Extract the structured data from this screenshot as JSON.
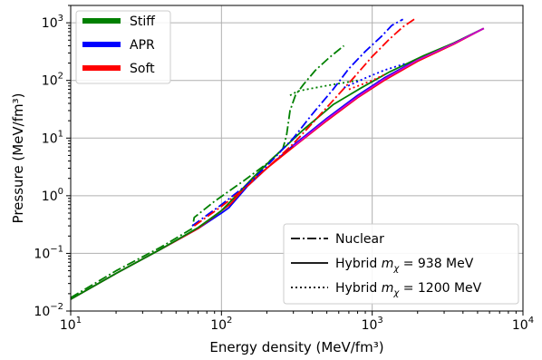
{
  "chart_data": {
    "type": "line",
    "xscale": "log",
    "yscale": "log",
    "xlim": [
      10,
      10000
    ],
    "ylim": [
      0.01,
      2000
    ],
    "grid": true,
    "xlabel": "Energy density (MeV/fm³)",
    "ylabel": "Pressure (MeV/fm³)",
    "x_ticks": [
      {
        "value": 10,
        "base": "10",
        "exp": "1"
      },
      {
        "value": 100,
        "base": "10",
        "exp": "2"
      },
      {
        "value": 1000,
        "base": "10",
        "exp": "3"
      },
      {
        "value": 10000,
        "base": "10",
        "exp": "4"
      }
    ],
    "y_ticks": [
      {
        "value": 0.01,
        "base": "10",
        "exp": "−2"
      },
      {
        "value": 0.1,
        "base": "10",
        "exp": "−1"
      },
      {
        "value": 1,
        "base": "10",
        "exp": "0"
      },
      {
        "value": 10,
        "base": "10",
        "exp": "1"
      },
      {
        "value": 100,
        "base": "10",
        "exp": "2"
      },
      {
        "value": 1000,
        "base": "10",
        "exp": "3"
      }
    ],
    "legend_eos": {
      "placement": "top-left",
      "entries": [
        {
          "name": "Stiff",
          "color": "#008000"
        },
        {
          "name": "APR",
          "color": "#0000ff"
        },
        {
          "name": "Soft",
          "color": "#ff0000"
        }
      ]
    },
    "legend_style": {
      "placement": "bottom-right",
      "entries": [
        {
          "style": "dashdot",
          "prefix": "Nuclear",
          "var": "",
          "sub": "",
          "suffix": ""
        },
        {
          "style": "solid",
          "prefix": "Hybrid ",
          "var": "m",
          "sub": "χ",
          "suffix": " = 938 MeV"
        },
        {
          "style": "dotted",
          "prefix": "Hybrid ",
          "var": "m",
          "sub": "χ",
          "suffix": " = 1200 MeV"
        }
      ]
    },
    "series": [
      {
        "eos": "APR",
        "style": "solid",
        "color": "#0000ff",
        "points": [
          [
            10,
            0.016
          ],
          [
            20,
            0.045
          ],
          [
            40,
            0.12
          ],
          [
            70,
            0.27
          ],
          [
            100,
            0.5
          ],
          [
            112,
            0.62
          ],
          [
            150,
            1.5
          ],
          [
            200,
            3.0
          ],
          [
            300,
            7.5
          ],
          [
            500,
            22
          ],
          [
            800,
            55
          ],
          [
            1200,
            110
          ],
          [
            2000,
            230
          ],
          [
            3500,
            450
          ],
          [
            5500,
            800
          ]
        ]
      },
      {
        "eos": "Soft",
        "style": "solid",
        "color": "#ff0000",
        "points": [
          [
            10,
            0.016
          ],
          [
            20,
            0.045
          ],
          [
            40,
            0.12
          ],
          [
            70,
            0.27
          ],
          [
            100,
            0.55
          ],
          [
            115,
            0.72
          ],
          [
            150,
            1.6
          ],
          [
            200,
            3.0
          ],
          [
            300,
            7.0
          ],
          [
            500,
            20
          ],
          [
            800,
            50
          ],
          [
            1200,
            100
          ],
          [
            2000,
            215
          ],
          [
            3500,
            430
          ],
          [
            5500,
            800
          ]
        ]
      },
      {
        "eos": "Stiff",
        "style": "solid",
        "color": "#008000",
        "points": [
          [
            10,
            0.016
          ],
          [
            20,
            0.045
          ],
          [
            40,
            0.12
          ],
          [
            70,
            0.28
          ],
          [
            100,
            0.55
          ],
          [
            120,
            0.9
          ],
          [
            160,
            2.0
          ],
          [
            220,
            4.5
          ],
          [
            350,
            14
          ],
          [
            550,
            38
          ],
          [
            850,
            75
          ],
          [
            1300,
            140
          ],
          [
            2200,
            270
          ],
          [
            3500,
            450
          ],
          [
            5500,
            800
          ]
        ]
      },
      {
        "eos": "Stiff",
        "style": "solid",
        "color": "#cc00cc",
        "points": [
          [
            300,
            7.2
          ],
          [
            500,
            21
          ],
          [
            800,
            52
          ],
          [
            1200,
            105
          ],
          [
            2000,
            225
          ],
          [
            3500,
            440
          ],
          [
            5500,
            800
          ]
        ]
      },
      {
        "eos": "Stiff",
        "style": "dashdot",
        "color": "#008000",
        "points": [
          [
            10,
            0.017
          ],
          [
            20,
            0.05
          ],
          [
            40,
            0.13
          ],
          [
            64,
            0.27
          ],
          [
            66,
            0.42
          ],
          [
            90,
            0.8
          ],
          [
            140,
            1.8
          ],
          [
            200,
            3.6
          ],
          [
            255,
            6.5
          ],
          [
            270,
            11
          ],
          [
            285,
            30
          ],
          [
            310,
            56
          ],
          [
            350,
            85
          ],
          [
            420,
            150
          ],
          [
            520,
            250
          ],
          [
            650,
            400
          ]
        ]
      },
      {
        "eos": "APR",
        "style": "dashdot",
        "color": "#0000ff",
        "points": [
          [
            64,
            0.3
          ],
          [
            100,
            0.7
          ],
          [
            150,
            1.6
          ],
          [
            200,
            3.3
          ],
          [
            300,
            10
          ],
          [
            400,
            26
          ],
          [
            550,
            70
          ],
          [
            700,
            160
          ],
          [
            900,
            320
          ],
          [
            1150,
            580
          ],
          [
            1350,
            900
          ],
          [
            1600,
            1150
          ]
        ]
      },
      {
        "eos": "Soft",
        "style": "dashdot",
        "color": "#ff0000",
        "points": [
          [
            66,
            0.3
          ],
          [
            100,
            0.65
          ],
          [
            150,
            1.5
          ],
          [
            200,
            3.0
          ],
          [
            300,
            8
          ],
          [
            400,
            18
          ],
          [
            550,
            45
          ],
          [
            750,
            110
          ],
          [
            1000,
            260
          ],
          [
            1300,
            520
          ],
          [
            1600,
            850
          ],
          [
            1900,
            1150
          ]
        ]
      },
      {
        "eos": "Stiff",
        "style": "dotted",
        "color": "#008000",
        "points": [
          [
            285,
            55
          ],
          [
            320,
            65
          ],
          [
            400,
            73
          ],
          [
            550,
            85
          ],
          [
            800,
            100
          ]
        ]
      },
      {
        "eos": "APR",
        "style": "dotted",
        "color": "#0000ff",
        "points": [
          [
            650,
            75
          ],
          [
            900,
            110
          ],
          [
            1200,
            150
          ],
          [
            1700,
            200
          ]
        ]
      },
      {
        "eos": "Soft",
        "style": "dotted",
        "color": "#ff0000",
        "points": [
          [
            700,
            70
          ],
          [
            1000,
            100
          ],
          [
            1200,
            125
          ]
        ]
      }
    ]
  }
}
